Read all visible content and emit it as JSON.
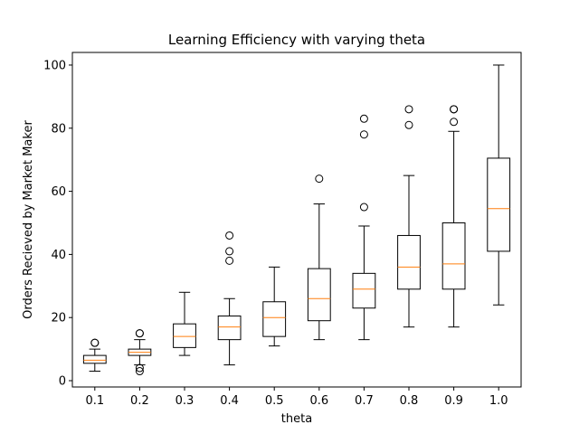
{
  "chart_data": {
    "type": "boxplot",
    "title": "Learning Efficiency with varying theta",
    "xlabel": "theta",
    "ylabel": "Orders Recieved by Market Maker",
    "ylim": [
      -2,
      104
    ],
    "yticks": [
      0,
      20,
      40,
      60,
      80,
      100
    ],
    "colors": {
      "box": "#000000",
      "median": "#ff7f0e",
      "background": "#ffffff"
    },
    "boxes": [
      {
        "label": "0.1",
        "whisker_low": 3,
        "q1": 5.5,
        "median": 6.5,
        "q3": 8,
        "whisker_high": 10,
        "outliers": [
          12,
          12
        ]
      },
      {
        "label": "0.2",
        "whisker_low": 5,
        "q1": 8,
        "median": 9,
        "q3": 10,
        "whisker_high": 13,
        "outliers": [
          3,
          4,
          15,
          15
        ]
      },
      {
        "label": "0.3",
        "whisker_low": 8,
        "q1": 10.5,
        "median": 14,
        "q3": 18,
        "whisker_high": 28,
        "outliers": []
      },
      {
        "label": "0.4",
        "whisker_low": 5,
        "q1": 13,
        "median": 17,
        "q3": 20.5,
        "whisker_high": 26,
        "outliers": [
          38,
          41,
          46
        ]
      },
      {
        "label": "0.5",
        "whisker_low": 11,
        "q1": 14,
        "median": 20,
        "q3": 25,
        "whisker_high": 36,
        "outliers": []
      },
      {
        "label": "0.6",
        "whisker_low": 13,
        "q1": 19,
        "median": 26,
        "q3": 35.5,
        "whisker_high": 56,
        "outliers": [
          64
        ]
      },
      {
        "label": "0.7",
        "whisker_low": 13,
        "q1": 23,
        "median": 29,
        "q3": 34,
        "whisker_high": 49,
        "outliers": [
          55,
          78,
          83
        ]
      },
      {
        "label": "0.8",
        "whisker_low": 17,
        "q1": 29,
        "median": 36,
        "q3": 46,
        "whisker_high": 65,
        "outliers": [
          81,
          86
        ]
      },
      {
        "label": "0.9",
        "whisker_low": 17,
        "q1": 29,
        "median": 37,
        "q3": 50,
        "whisker_high": 79,
        "outliers": [
          82,
          86,
          86
        ]
      },
      {
        "label": "1.0",
        "whisker_low": 24,
        "q1": 41,
        "median": 54.5,
        "q3": 70.5,
        "whisker_high": 100,
        "outliers": []
      }
    ]
  }
}
